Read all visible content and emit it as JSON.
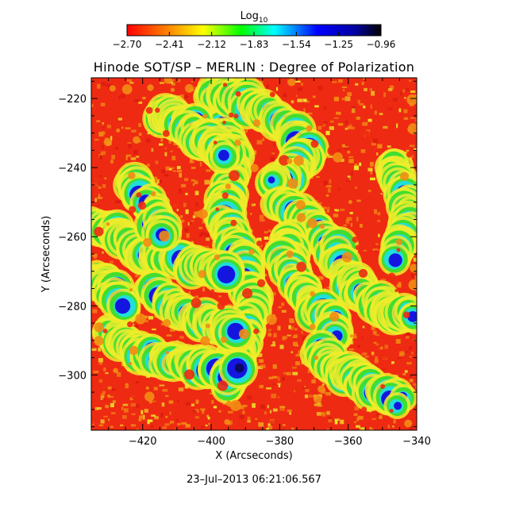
{
  "colorbar": {
    "title_base": "Log",
    "title_sub": "10",
    "ticks": [
      "−2.70",
      "−2.41",
      "−2.12",
      "−1.83",
      "−1.54",
      "−1.25",
      "−0.96"
    ],
    "colors": [
      "#ff0000",
      "#ff8c00",
      "#ffff00",
      "#00ff00",
      "#00ffff",
      "#0000ff",
      "#0000a0",
      "#000000"
    ]
  },
  "plot": {
    "title": "Hinode SOT/SP – MERLIN : Degree of Polarization",
    "xlabel": "X (Arcseconds)",
    "ylabel": "Y (Arcseconds)",
    "x_ticks": [
      "−420",
      "−400",
      "−380",
      "−360",
      "−340"
    ],
    "y_ticks": [
      "−220",
      "−240",
      "−260",
      "−280",
      "−300"
    ],
    "x_range": [
      -435,
      -340
    ],
    "y_range": [
      -316,
      -214
    ],
    "x_tick_values": [
      -420,
      -400,
      -380,
      -360,
      -340
    ],
    "y_tick_values": [
      -220,
      -240,
      -260,
      -280,
      -300
    ],
    "timestamp": "23–Jul–2013 06:21:06.567"
  },
  "map_colors": {
    "low": "#ee2a12",
    "mid": "#f28c14",
    "yellow": "#f0ec2a",
    "green": "#30dd30",
    "cyan": "#20dde0",
    "blue": "#1515e0",
    "dark": "#0a0a60"
  }
}
